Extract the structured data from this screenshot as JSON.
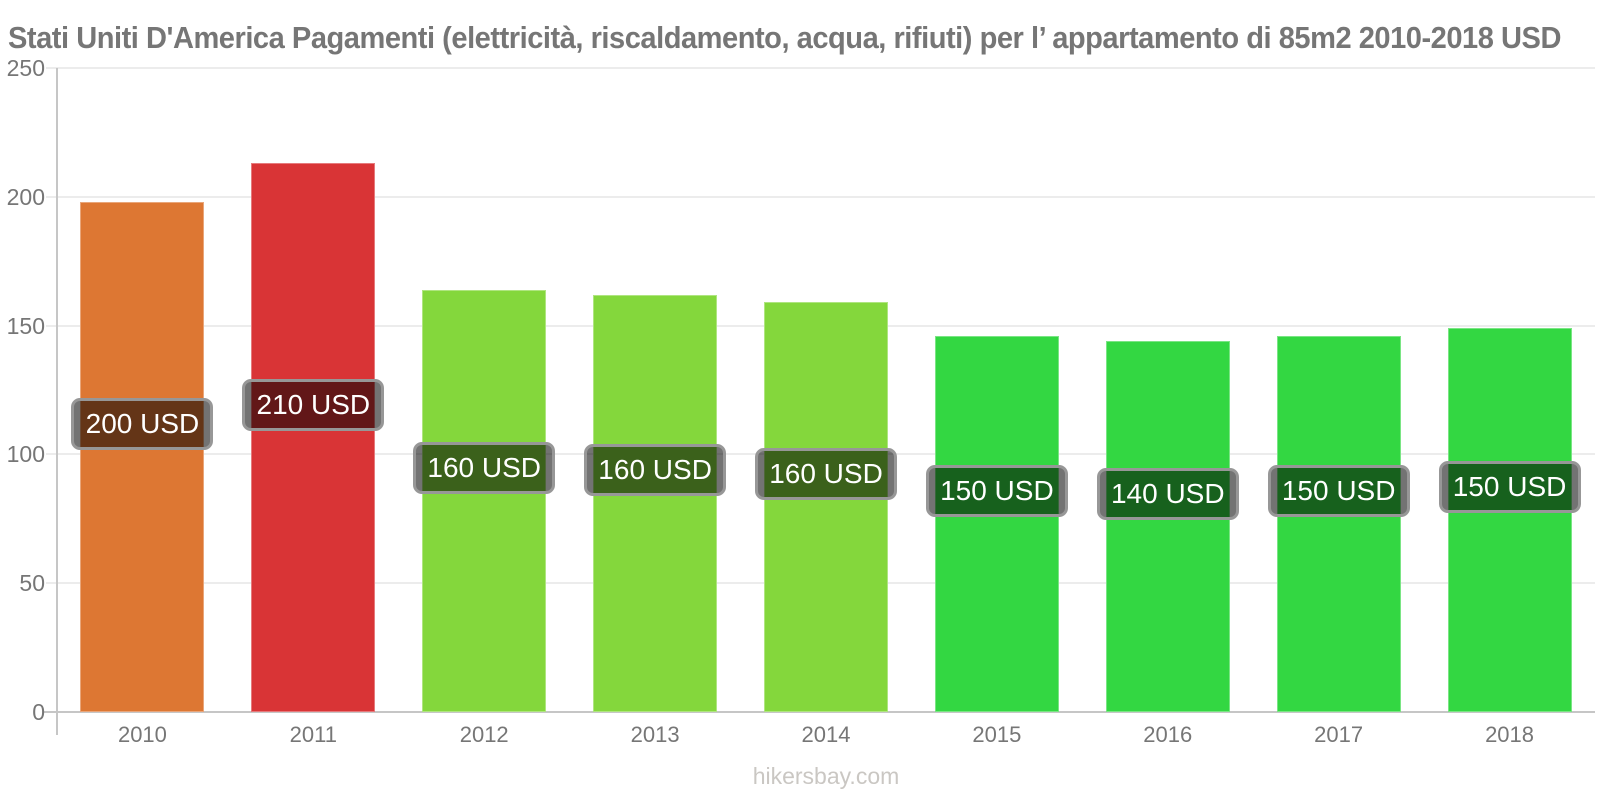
{
  "chart_data": {
    "type": "bar",
    "title": "Stati Uniti D'America Pagamenti (elettricità, riscaldamento, acqua, rifiuti) per l’ appartamento di 85m2 2010-2018 USD",
    "categories": [
      "2010",
      "2011",
      "2012",
      "2013",
      "2014",
      "2015",
      "2016",
      "2017",
      "2018"
    ],
    "values": [
      198,
      213,
      164,
      162,
      159,
      146,
      144,
      146,
      149
    ],
    "bar_labels": [
      "200 USD",
      "210 USD",
      "160 USD",
      "160 USD",
      "160 USD",
      "150 USD",
      "140 USD",
      "150 USD",
      "150 USD"
    ],
    "bar_colors": [
      "#DD7733",
      "#D93436",
      "#84D73C",
      "#84D73C",
      "#84D73C",
      "#33D742",
      "#33D742",
      "#33D742",
      "#33D742"
    ],
    "xlabel": "",
    "ylabel": "",
    "ylim": [
      0,
      250
    ],
    "yticks": [
      0,
      50,
      100,
      150,
      200,
      250
    ],
    "grid": true,
    "legend": "none",
    "title_color": "#767676",
    "axis_text_color": "#767676",
    "grid_color": "#ececec",
    "axis_line_color": "#c6c6c6",
    "label_box": {
      "fill": "rgba(0,0,0,0.55)",
      "border_color": "#979797",
      "text_color": "#ffffff"
    },
    "watermark": "hikersbay.com"
  }
}
